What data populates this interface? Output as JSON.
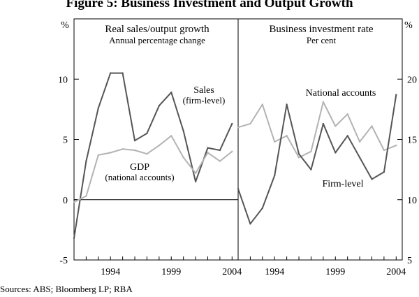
{
  "figure": {
    "title": "Figure 5: Business Investment and Output Growth",
    "source": "Sources:   ABS; Bloomberg LP; RBA"
  },
  "chart_data": [
    {
      "type": "line",
      "panel": "left",
      "title": "Real sales/output growth",
      "subtitle": "Annual percentage change",
      "ylabel": "%",
      "ylim": [
        -5,
        15
      ],
      "yticks": [
        -5,
        0,
        5,
        10
      ],
      "xlim": [
        1991,
        2004.5
      ],
      "xticks": [
        1994,
        1999,
        2004
      ],
      "series": [
        {
          "name": "Sales (firm-level)",
          "label_line1": "Sales",
          "label_line2": "(firm-level)",
          "color": "#555555",
          "x": [
            1991,
            1992,
            1993,
            1994,
            1995,
            1996,
            1997,
            1998,
            1999,
            2000,
            2001,
            2002,
            2003,
            2004
          ],
          "values": [
            -3.2,
            3.2,
            7.6,
            10.5,
            10.5,
            4.9,
            5.5,
            7.8,
            8.9,
            5.7,
            1.5,
            4.3,
            4.1,
            6.3
          ]
        },
        {
          "name": "GDP (national accounts)",
          "label_line1": "GDP",
          "label_line2": "(national accounts)",
          "color": "#b3b3b3",
          "x": [
            1991,
            1992,
            1993,
            1994,
            1995,
            1996,
            1997,
            1998,
            1999,
            2000,
            2001,
            2002,
            2003,
            2004
          ],
          "values": [
            -0.2,
            0.3,
            3.7,
            3.9,
            4.2,
            4.1,
            3.8,
            4.5,
            5.3,
            3.5,
            2.2,
            3.9,
            3.2,
            4.0
          ]
        }
      ]
    },
    {
      "type": "line",
      "panel": "right",
      "title": "Business investment rate",
      "subtitle": "Per cent",
      "ylabel": "%",
      "ylim": [
        5,
        25
      ],
      "yticks": [
        5,
        10,
        15,
        20
      ],
      "xlim": [
        1991,
        2004.5
      ],
      "xticks": [
        1994,
        1999,
        2004
      ],
      "series": [
        {
          "name": "National accounts",
          "label_line1": "National accounts",
          "label_line2": "",
          "color": "#b3b3b3",
          "x": [
            1991,
            1992,
            1993,
            1994,
            1995,
            1996,
            1997,
            1998,
            1999,
            2000,
            2001,
            2002,
            2003,
            2004
          ],
          "values": [
            16.0,
            16.3,
            17.9,
            14.8,
            15.3,
            13.5,
            14.0,
            18.1,
            16.1,
            17.1,
            14.8,
            16.1,
            14.1,
            14.5
          ]
        },
        {
          "name": "Firm-level",
          "label_line1": "Firm-level",
          "label_line2": "",
          "color": "#555555",
          "x": [
            1991,
            1992,
            1993,
            1994,
            1995,
            1996,
            1997,
            1998,
            1999,
            2000,
            2001,
            2002,
            2003,
            2004
          ],
          "values": [
            10.9,
            8.0,
            9.3,
            12.0,
            17.9,
            13.8,
            12.5,
            16.3,
            13.9,
            15.3,
            13.5,
            11.7,
            12.3,
            18.7
          ]
        }
      ]
    }
  ]
}
